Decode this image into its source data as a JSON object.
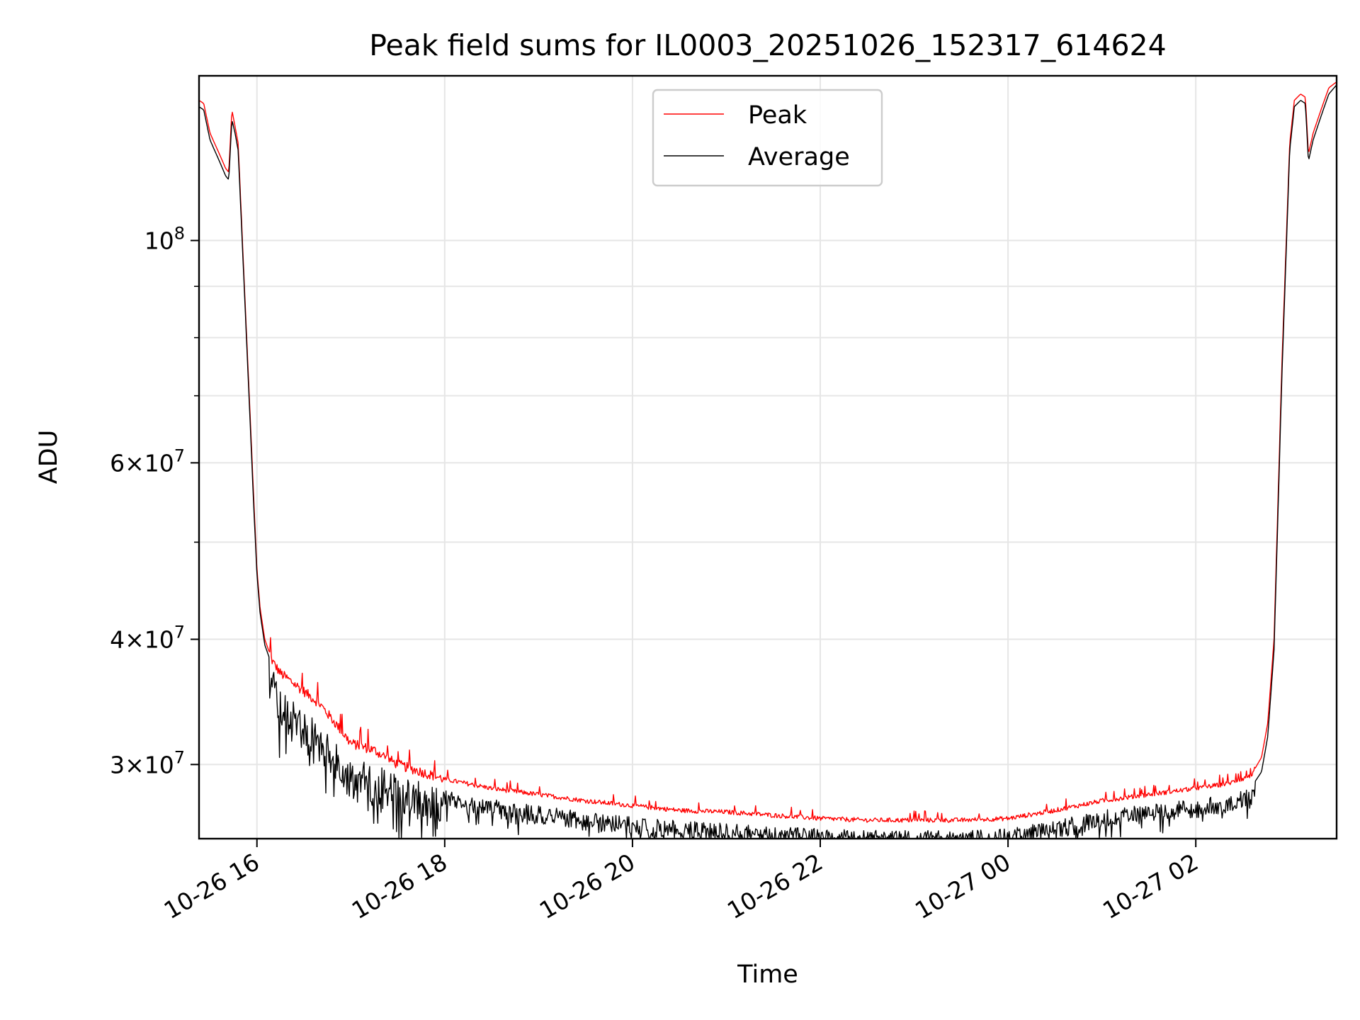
{
  "chart_data": {
    "type": "line",
    "title": "Peak field sums for IL0003_20251026_152317_614624",
    "xlabel": "Time",
    "ylabel": "ADU",
    "yscale": "log",
    "xlim": [
      "2025-10-26 15:23",
      "2025-10-27 03:30"
    ],
    "ylim": [
      25300000,
      146000000
    ],
    "grid": true,
    "legend_position": "upper center",
    "xticks": [
      {
        "value": "2025-10-26 16:00",
        "label": "10-26 16"
      },
      {
        "value": "2025-10-26 18:00",
        "label": "10-26 18"
      },
      {
        "value": "2025-10-26 20:00",
        "label": "10-26 20"
      },
      {
        "value": "2025-10-26 22:00",
        "label": "10-26 22"
      },
      {
        "value": "2025-10-27 00:00",
        "label": "10-27 00"
      },
      {
        "value": "2025-10-27 02:00",
        "label": "10-27 02"
      }
    ],
    "yticks_major": [
      {
        "value": 30000000,
        "mantissa": "3",
        "exp": "7"
      },
      {
        "value": 40000000,
        "mantissa": "4",
        "exp": "7"
      },
      {
        "value": 60000000,
        "mantissa": "6",
        "exp": "7"
      },
      {
        "value": 100000000,
        "mantissa": "",
        "exp": "8"
      }
    ],
    "yticks_minor": [
      50000000,
      70000000,
      80000000,
      90000000
    ],
    "series": [
      {
        "name": "Peak",
        "color": "#ff0000",
        "x": [
          "2025-10-26 15:23",
          "2025-10-26 15:26",
          "2025-10-26 15:30",
          "2025-10-26 15:36",
          "2025-10-26 15:40",
          "2025-10-26 15:42",
          "2025-10-26 15:44",
          "2025-10-26 15:46",
          "2025-10-26 15:48",
          "2025-10-26 15:52",
          "2025-10-26 15:56",
          "2025-10-26 15:58",
          "2025-10-26 16:00",
          "2025-10-26 16:02",
          "2025-10-26 16:05",
          "2025-10-26 16:10",
          "2025-10-26 16:15",
          "2025-10-26 16:20",
          "2025-10-26 16:30",
          "2025-10-26 16:40",
          "2025-10-26 16:50",
          "2025-10-26 17:00",
          "2025-10-26 17:15",
          "2025-10-26 17:30",
          "2025-10-26 17:45",
          "2025-10-26 18:00",
          "2025-10-26 18:30",
          "2025-10-26 19:00",
          "2025-10-26 19:30",
          "2025-10-26 20:00",
          "2025-10-26 20:30",
          "2025-10-26 21:00",
          "2025-10-26 21:30",
          "2025-10-26 22:00",
          "2025-10-26 22:30",
          "2025-10-26 23:00",
          "2025-10-26 23:30",
          "2025-10-27 00:00",
          "2025-10-27 00:30",
          "2025-10-27 01:00",
          "2025-10-27 01:30",
          "2025-10-27 02:00",
          "2025-10-27 02:20",
          "2025-10-27 02:35",
          "2025-10-27 02:42",
          "2025-10-27 02:46",
          "2025-10-27 02:50",
          "2025-10-27 02:55",
          "2025-10-27 03:00",
          "2025-10-27 03:03",
          "2025-10-27 03:07",
          "2025-10-27 03:10",
          "2025-10-27 03:12",
          "2025-10-27 03:15",
          "2025-10-27 03:20",
          "2025-10-27 03:25",
          "2025-10-27 03:30"
        ],
        "y": [
          138000000,
          137000000,
          128000000,
          122000000,
          118000000,
          117000000,
          135000000,
          130000000,
          125000000,
          90000000,
          65000000,
          55000000,
          47000000,
          43000000,
          40000000,
          38000000,
          37000000,
          36500000,
          35500000,
          34500000,
          33000000,
          31500000,
          31000000,
          30000000,
          29500000,
          29000000,
          28400000,
          28000000,
          27600000,
          27300000,
          27000000,
          26900000,
          26700000,
          26500000,
          26400000,
          26400000,
          26400000,
          26500000,
          27000000,
          27600000,
          28000000,
          28400000,
          28700000,
          29200000,
          30500000,
          33000000,
          40000000,
          75000000,
          125000000,
          138000000,
          140000000,
          139000000,
          122000000,
          128000000,
          135000000,
          142000000,
          144000000
        ]
      },
      {
        "name": "Average",
        "color": "#000000",
        "x": [
          "2025-10-26 15:23",
          "2025-10-26 15:26",
          "2025-10-26 15:30",
          "2025-10-26 15:36",
          "2025-10-26 15:40",
          "2025-10-26 15:42",
          "2025-10-26 15:44",
          "2025-10-26 15:46",
          "2025-10-26 15:48",
          "2025-10-26 15:52",
          "2025-10-26 15:56",
          "2025-10-26 15:58",
          "2025-10-26 16:00",
          "2025-10-26 16:02",
          "2025-10-26 16:05",
          "2025-10-26 16:10",
          "2025-10-26 16:15",
          "2025-10-26 16:20",
          "2025-10-26 16:30",
          "2025-10-26 16:40",
          "2025-10-26 16:50",
          "2025-10-26 17:00",
          "2025-10-26 17:15",
          "2025-10-26 17:30",
          "2025-10-26 17:45",
          "2025-10-26 18:00",
          "2025-10-26 18:30",
          "2025-10-26 19:00",
          "2025-10-26 19:30",
          "2025-10-26 20:00",
          "2025-10-26 20:30",
          "2025-10-26 21:00",
          "2025-10-26 21:30",
          "2025-10-26 22:00",
          "2025-10-26 22:30",
          "2025-10-26 23:00",
          "2025-10-26 23:30",
          "2025-10-27 00:00",
          "2025-10-27 00:30",
          "2025-10-27 01:00",
          "2025-10-27 01:30",
          "2025-10-27 02:00",
          "2025-10-27 02:20",
          "2025-10-27 02:35",
          "2025-10-27 02:42",
          "2025-10-27 02:46",
          "2025-10-27 02:50",
          "2025-10-27 02:55",
          "2025-10-27 03:00",
          "2025-10-27 03:03",
          "2025-10-27 03:07",
          "2025-10-27 03:10",
          "2025-10-27 03:12",
          "2025-10-27 03:15",
          "2025-10-27 03:20",
          "2025-10-27 03:25",
          "2025-10-27 03:30"
        ],
        "y": [
          136000000,
          135000000,
          126000000,
          120000000,
          116000000,
          115000000,
          132000000,
          128000000,
          123000000,
          89000000,
          64000000,
          54000000,
          46500000,
          42500000,
          39500000,
          37500000,
          36000000,
          35000000,
          34000000,
          33000000,
          31500000,
          30500000,
          30000000,
          29300000,
          28800000,
          28300000,
          27700000,
          27300000,
          26900000,
          26600000,
          26400000,
          26200000,
          26000000,
          25900000,
          25800000,
          25800000,
          25800000,
          25900000,
          26400000,
          27000000,
          27400000,
          27700000,
          28000000,
          28400000,
          29500000,
          32000000,
          39000000,
          73000000,
          123000000,
          136000000,
          138000000,
          137000000,
          120000000,
          126000000,
          133000000,
          140000000,
          143000000
        ]
      }
    ],
    "noise_amplitude": 0.03
  }
}
